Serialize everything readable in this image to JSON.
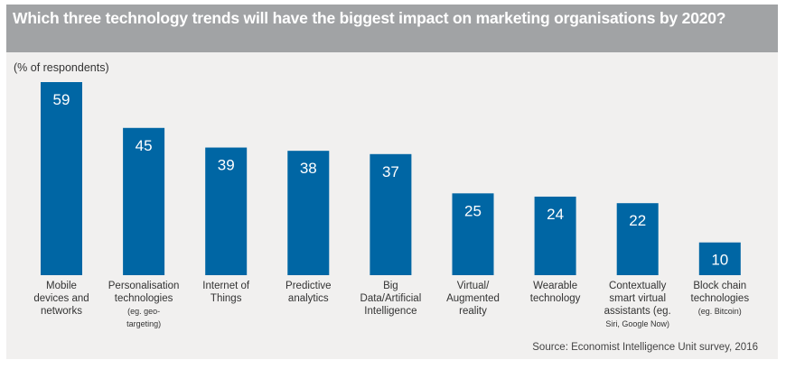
{
  "chart_data": {
    "type": "bar",
    "title": "Which three technology trends will have the biggest impact on marketing organisations by 2020?",
    "ylabel": "(% of respondents)",
    "xlabel": "",
    "ylim": [
      0,
      59
    ],
    "grid": false,
    "legend": "none",
    "bar_color": "#0066a4",
    "categories": [
      [
        "Mobile",
        "devices and",
        "networks"
      ],
      [
        "Personalisation",
        "technologies",
        "(eg. geo-",
        "targeting)"
      ],
      [
        "Internet of",
        "Things"
      ],
      [
        "Predictive",
        "analytics"
      ],
      [
        "Big",
        "Data/Artificial",
        "Intelligence"
      ],
      [
        "Virtual/",
        "Augmented",
        "reality"
      ],
      [
        "Wearable",
        "technology"
      ],
      [
        "Contextually",
        "smart virtual",
        "assistants (eg.",
        "Siri, Google Now)"
      ],
      [
        "Block chain",
        "technologies",
        "(eg. Bitcoin)"
      ]
    ],
    "values": [
      59,
      45,
      39,
      38,
      37,
      25,
      24,
      22,
      10
    ],
    "source": "Source: Economist Intelligence Unit survey, 2016"
  }
}
